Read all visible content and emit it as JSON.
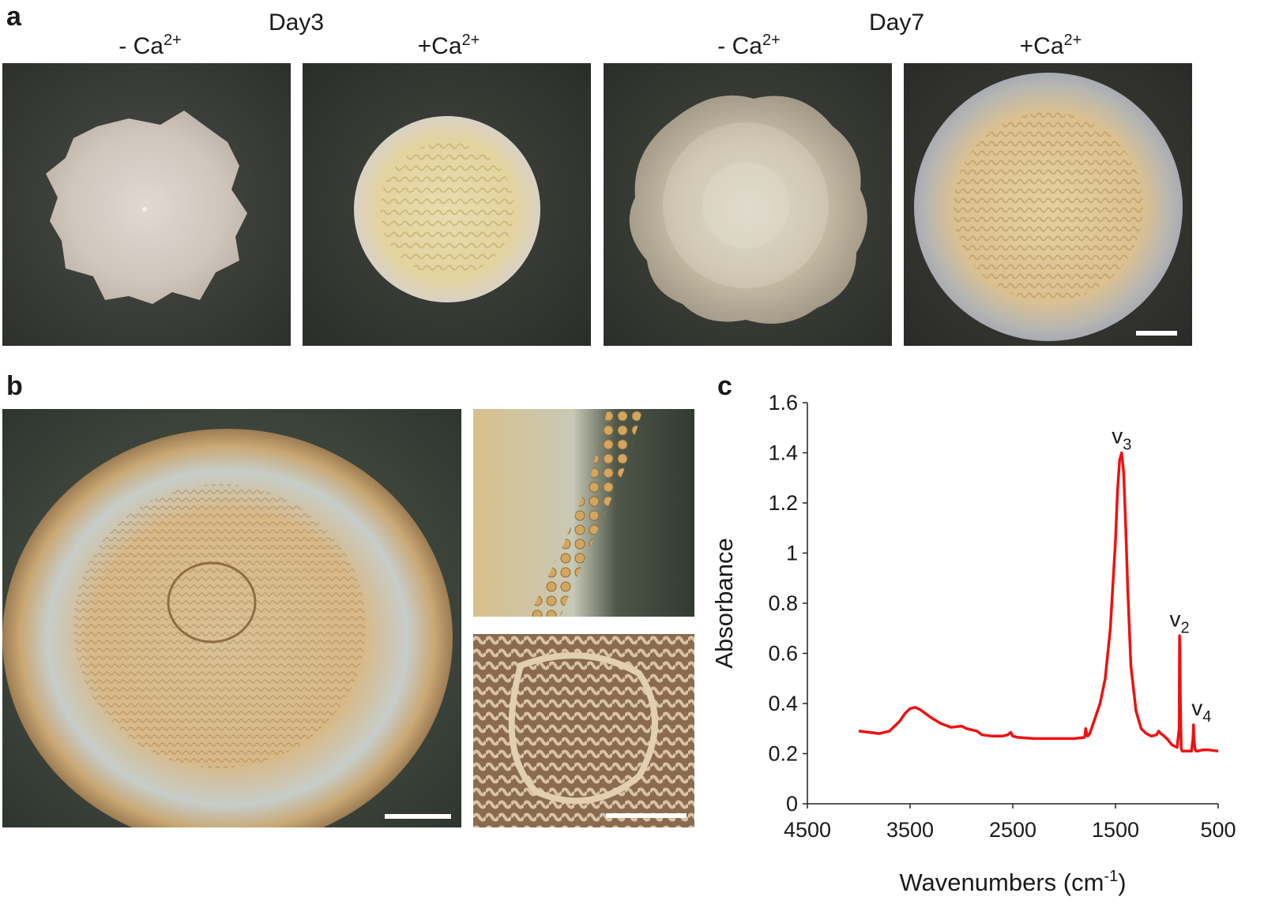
{
  "panels": {
    "a": {
      "letter": "a",
      "groups": [
        {
          "title": "Day3",
          "conditions": [
            {
              "prefix": "- Ca",
              "sup": "2+"
            },
            {
              "prefix": "+Ca",
              "sup": "2+"
            }
          ]
        },
        {
          "title": "Day7",
          "conditions": [
            {
              "prefix": "- Ca",
              "sup": "2+"
            },
            {
              "prefix": "+Ca",
              "sup": "2+"
            }
          ]
        }
      ]
    },
    "b": {
      "letter": "b"
    },
    "c": {
      "letter": "c"
    }
  },
  "colors": {
    "plate_dark": "#3a3d38",
    "colony_smooth": "#d8cfc6",
    "colony_wrinkled": "#e8d9b0",
    "colony_calcified": "#d7b88c",
    "spectrum_line": "#ee1111"
  },
  "chart_data": {
    "type": "line",
    "title": "",
    "xlabel": "Wavenumbers (cm-1)",
    "xlabel_main": "Wavenumbers (cm",
    "xlabel_sup": "-1",
    "xlabel_end": ")",
    "ylabel": "Absorbance",
    "xlim": [
      4500,
      500
    ],
    "xreversed": true,
    "ylim": [
      0,
      1.6
    ],
    "xticks": [
      "4500",
      "3500",
      "2500",
      "1500",
      "500"
    ],
    "yticks": [
      "0",
      "0.2",
      "0.4",
      "0.6",
      "0.8",
      "1",
      "1.2",
      "1.4",
      "1.6"
    ],
    "grid": false,
    "series": [
      {
        "x": [
          4000,
          3900,
          3800,
          3700,
          3650,
          3600,
          3550,
          3500,
          3450,
          3400,
          3350,
          3300,
          3200,
          3100,
          3000,
          2950,
          2900,
          2850,
          2800,
          2700,
          2600,
          2550,
          2520,
          2500,
          2450,
          2300,
          2100,
          1900,
          1800,
          1790,
          1780,
          1770,
          1750,
          1700,
          1650,
          1600,
          1550,
          1500,
          1480,
          1460,
          1440,
          1420,
          1400,
          1380,
          1350,
          1300,
          1250,
          1200,
          1150,
          1100,
          1080,
          1060,
          1040,
          1000,
          950,
          900,
          880,
          876,
          872,
          868,
          860,
          850,
          800,
          760,
          745,
          740,
          735,
          725,
          712,
          700,
          650,
          600,
          500
        ],
        "y": [
          0.29,
          0.285,
          0.28,
          0.29,
          0.31,
          0.33,
          0.36,
          0.38,
          0.385,
          0.375,
          0.36,
          0.345,
          0.32,
          0.305,
          0.31,
          0.3,
          0.295,
          0.29,
          0.275,
          0.27,
          0.27,
          0.275,
          0.285,
          0.27,
          0.265,
          0.26,
          0.26,
          0.26,
          0.265,
          0.3,
          0.28,
          0.27,
          0.28,
          0.34,
          0.4,
          0.5,
          0.7,
          1.05,
          1.25,
          1.37,
          1.4,
          1.32,
          1.1,
          0.85,
          0.55,
          0.37,
          0.3,
          0.28,
          0.27,
          0.275,
          0.29,
          0.28,
          0.275,
          0.26,
          0.235,
          0.225,
          0.3,
          0.67,
          0.62,
          0.4,
          0.22,
          0.21,
          0.21,
          0.21,
          0.26,
          0.315,
          0.25,
          0.215,
          0.21,
          0.21,
          0.215,
          0.215,
          0.21
        ]
      }
    ],
    "annotations": [
      {
        "main": "v",
        "sub": "3",
        "x": 1440,
        "y": 1.4
      },
      {
        "main": "v",
        "sub": "2",
        "x": 876,
        "y": 0.67
      },
      {
        "main": "v",
        "sub": "4",
        "x": 740,
        "y": 0.315
      }
    ]
  }
}
